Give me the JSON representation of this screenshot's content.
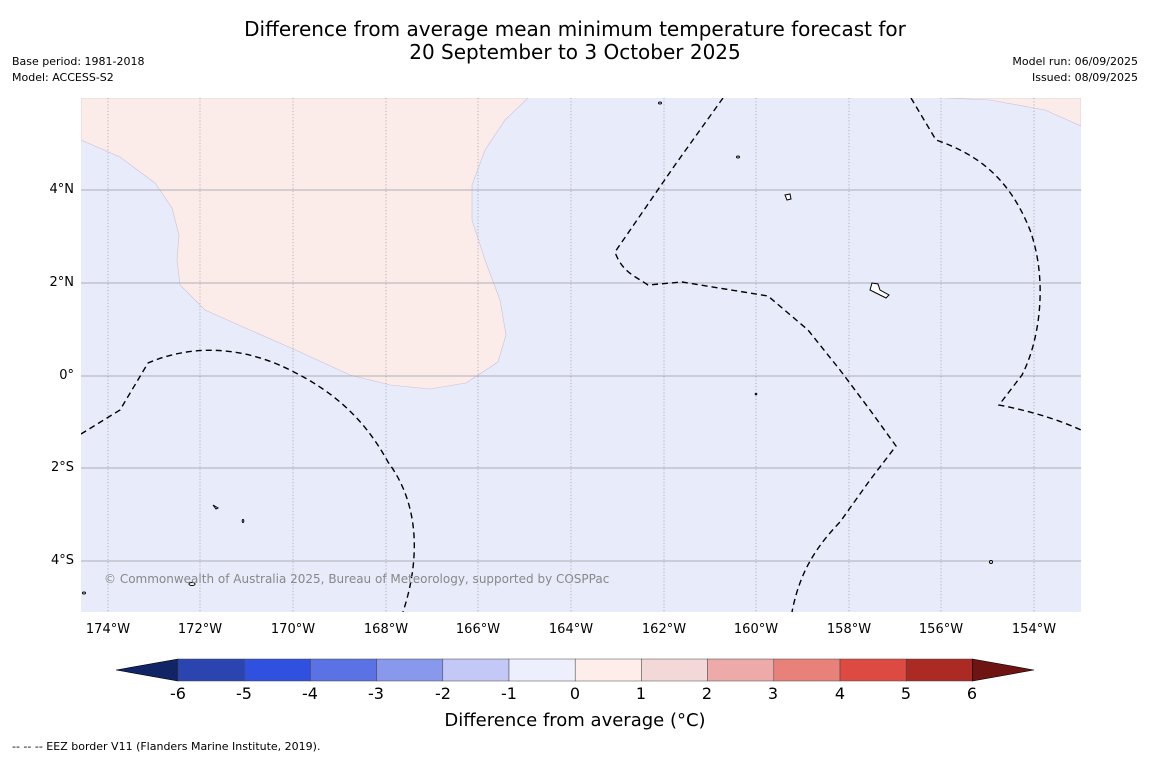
{
  "title_line1": "Difference from average mean minimum temperature forecast for",
  "title_line2": "20 September to 3 October 2025",
  "meta_left": {
    "base_period": "Base period: 1981-2018",
    "model": "Model: ACCESS-S2"
  },
  "meta_right": {
    "model_run": "Model run: 06/09/2025",
    "issued": "Issued: 08/09/2025"
  },
  "map": {
    "y_ticks": [
      "4°N",
      "2°N",
      "0°",
      "2°S",
      "4°S"
    ],
    "x_ticks": [
      "174°W",
      "172°W",
      "170°W",
      "168°W",
      "166°W",
      "164°W",
      "162°W",
      "160°W",
      "158°W",
      "156°W",
      "154°W"
    ],
    "copyright": "© Commonwealth of Australia 2025, Bureau of Meteorology, supported by COSPPac",
    "colors": {
      "below_average_0_to_-1": "#e8ebfa",
      "above_average_0_to_1": "#fbece9"
    }
  },
  "colorbar": {
    "ticks": [
      "-6",
      "-5",
      "-4",
      "-3",
      "-2",
      "-1",
      "0",
      "1",
      "2",
      "3",
      "4",
      "5",
      "6"
    ],
    "colors": [
      "#112566",
      "#2a45b0",
      "#3050e0",
      "#5a72e4",
      "#8898ec",
      "#c4c8f6",
      "#edeffc",
      "#fdeeeb",
      "#f2d8d6",
      "#eeaaa8",
      "#e8817a",
      "#dd4a42",
      "#ac2a24",
      "#6e1514"
    ],
    "label": "Difference from average (°C)"
  },
  "footnote": "--  --  -- EEZ border V11 (Flanders Marine Institute, 2019)."
}
